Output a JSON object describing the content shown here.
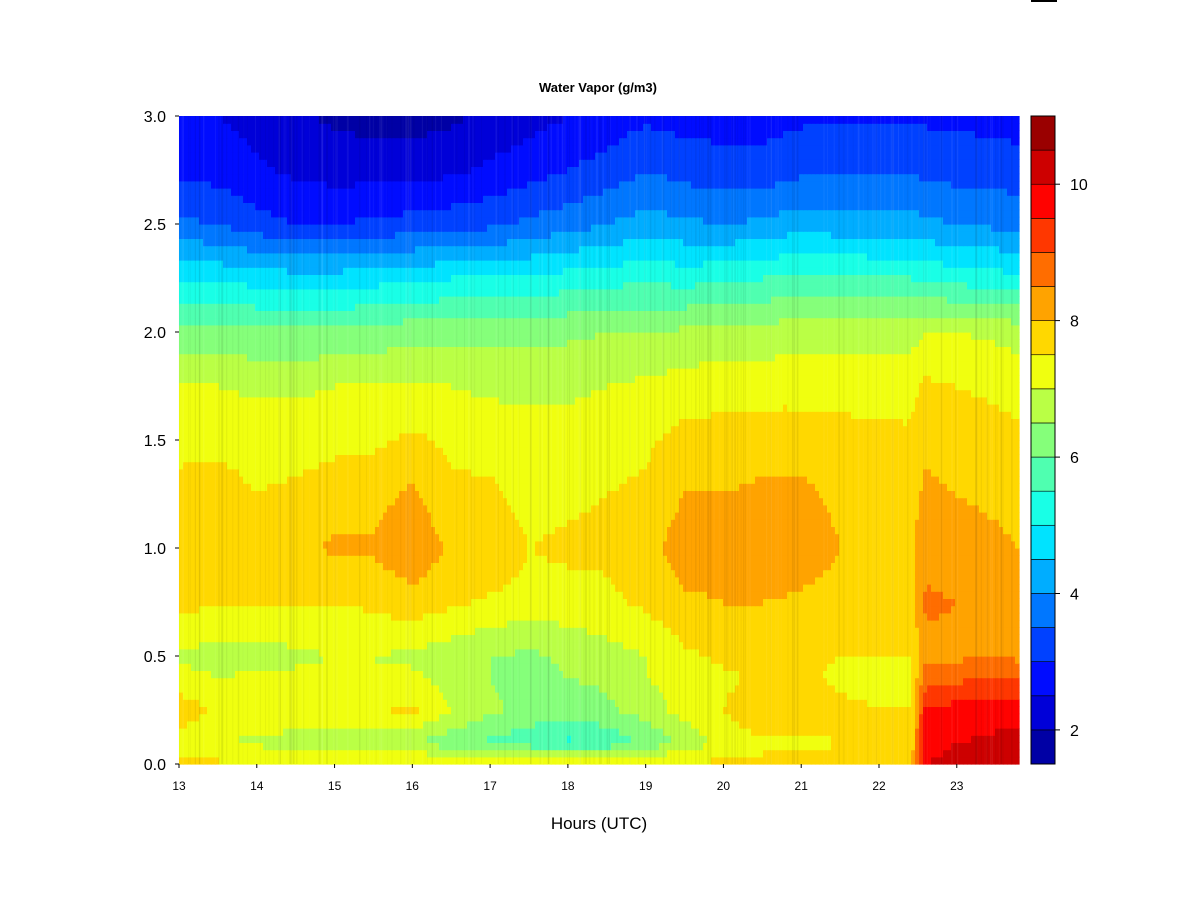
{
  "chart_data": {
    "type": "heatmap",
    "title": "Water Vapor (g/m3)",
    "xlabel": "Hours (UTC)",
    "ylabel": "",
    "x_ticks": [
      "13",
      "14",
      "15",
      "16",
      "17",
      "18",
      "19",
      "20",
      "21",
      "22",
      "23"
    ],
    "y_ticks": [
      "0.0",
      "0.5",
      "1.0",
      "1.5",
      "2.0",
      "2.5",
      "3.0"
    ],
    "xlim": [
      13,
      23.8
    ],
    "ylim": [
      0,
      3
    ],
    "colorbar": {
      "ticks": [
        "2",
        "4",
        "6",
        "8",
        "10"
      ],
      "range": [
        1.5,
        11
      ],
      "levels": 19
    },
    "x_hours": [
      13,
      13.5,
      14,
      14.5,
      15,
      15.5,
      16,
      16.5,
      17,
      17.5,
      18,
      18.5,
      19,
      19.5,
      20,
      20.5,
      21,
      21.5,
      22,
      22.4,
      22.6,
      23,
      23.5,
      23.8
    ],
    "y_heights": [
      0,
      0.1,
      0.25,
      0.4,
      0.5,
      0.75,
      1.0,
      1.25,
      1.5,
      1.75,
      2.0,
      2.25,
      2.5,
      2.75,
      3.0
    ],
    "z_values": [
      [
        7.6,
        7.6,
        7.6,
        7.6,
        7.6,
        7.6,
        7.6,
        7.6,
        7.6,
        7.6,
        7.6,
        7.6,
        7.6,
        7.6,
        7.6,
        7.6,
        7.6,
        7.6,
        7.7,
        7.7,
        10.0,
        10.1,
        10.2,
        10.2
      ],
      [
        7.3,
        7.0,
        6.9,
        6.8,
        6.7,
        6.6,
        6.5,
        6.2,
        5.9,
        5.7,
        5.4,
        5.6,
        6.1,
        6.6,
        7.2,
        7.4,
        7.4,
        7.5,
        7.5,
        7.5,
        9.9,
        10.0,
        10.1,
        10.1
      ],
      [
        7.8,
        7.4,
        7.4,
        7.3,
        7.3,
        7.4,
        7.6,
        7.0,
        6.6,
        6.3,
        6.2,
        6.4,
        6.7,
        7.2,
        7.5,
        7.9,
        7.9,
        7.6,
        7.5,
        7.5,
        9.6,
        9.7,
        9.8,
        9.8
      ],
      [
        7.2,
        7.0,
        7.1,
        7.1,
        7.2,
        7.0,
        7.1,
        6.8,
        6.5,
        6.3,
        6.5,
        6.6,
        7.0,
        7.2,
        7.4,
        7.6,
        7.6,
        7.4,
        7.4,
        7.4,
        8.8,
        8.9,
        9.0,
        8.9
      ],
      [
        6.9,
        6.8,
        6.8,
        6.9,
        7.0,
        7.0,
        6.9,
        6.7,
        6.5,
        6.4,
        6.6,
        6.8,
        7.0,
        7.4,
        7.6,
        7.7,
        7.6,
        7.5,
        7.5,
        7.5,
        8.3,
        8.4,
        8.5,
        8.4
      ],
      [
        7.6,
        7.6,
        7.5,
        7.5,
        7.5,
        7.6,
        7.8,
        7.6,
        7.4,
        7.3,
        7.3,
        7.4,
        7.6,
        7.9,
        8.0,
        8.0,
        7.9,
        7.8,
        7.8,
        7.8,
        8.6,
        8.5,
        8.4,
        8.3
      ],
      [
        7.8,
        8.0,
        7.6,
        7.8,
        8.1,
        8.1,
        8.4,
        7.9,
        8.0,
        7.5,
        7.6,
        7.6,
        7.8,
        8.3,
        8.3,
        8.5,
        8.3,
        8.0,
        7.9,
        7.9,
        8.3,
        8.2,
        8.1,
        8.0
      ],
      [
        7.6,
        7.7,
        7.5,
        7.6,
        7.7,
        7.8,
        8.1,
        7.6,
        7.6,
        7.3,
        7.4,
        7.5,
        7.6,
        8.0,
        8.0,
        8.1,
        8.1,
        7.9,
        7.8,
        7.8,
        8.1,
        8.0,
        7.9,
        7.8
      ],
      [
        7.4,
        7.4,
        7.3,
        7.3,
        7.4,
        7.4,
        7.6,
        7.4,
        7.3,
        7.2,
        7.2,
        7.3,
        7.4,
        7.7,
        7.7,
        7.8,
        7.8,
        7.7,
        7.6,
        7.6,
        7.9,
        7.8,
        7.7,
        7.6
      ],
      [
        7.0,
        7.0,
        6.9,
        6.9,
        7.0,
        7.0,
        7.1,
        7.0,
        6.9,
        6.9,
        6.9,
        7.0,
        7.1,
        7.2,
        7.3,
        7.3,
        7.3,
        7.3,
        7.3,
        7.3,
        7.6,
        7.5,
        7.4,
        7.3
      ],
      [
        6.2,
        6.2,
        6.1,
        6.1,
        6.1,
        6.2,
        6.3,
        6.3,
        6.3,
        6.3,
        6.4,
        6.5,
        6.5,
        6.6,
        6.7,
        6.7,
        6.8,
        6.8,
        6.8,
        6.8,
        7.0,
        7.0,
        6.9,
        6.8
      ],
      [
        5.0,
        4.9,
        4.8,
        4.7,
        4.7,
        4.8,
        4.9,
        5.0,
        5.0,
        5.1,
        5.2,
        5.3,
        5.4,
        5.3,
        5.4,
        5.5,
        5.6,
        5.6,
        5.5,
        5.5,
        5.4,
        5.3,
        5.2,
        5.1
      ],
      [
        3.6,
        3.5,
        3.2,
        3.0,
        3.0,
        3.1,
        3.2,
        3.3,
        3.4,
        3.6,
        3.8,
        4.0,
        4.2,
        4.1,
        4.0,
        4.1,
        4.3,
        4.2,
        4.2,
        4.2,
        4.1,
        4.0,
        3.9,
        3.8
      ],
      [
        2.9,
        2.8,
        2.6,
        2.4,
        2.3,
        2.3,
        2.3,
        2.4,
        2.6,
        2.8,
        3.0,
        3.2,
        3.5,
        3.3,
        3.2,
        3.2,
        3.4,
        3.4,
        3.4,
        3.4,
        3.4,
        3.3,
        3.3,
        3.2
      ],
      [
        2.6,
        2.5,
        2.3,
        2.1,
        1.9,
        1.8,
        1.8,
        1.9,
        2.1,
        2.3,
        2.5,
        2.7,
        2.9,
        2.8,
        2.8,
        2.8,
        2.9,
        2.9,
        2.9,
        2.9,
        2.9,
        2.9,
        2.8,
        2.8
      ]
    ]
  }
}
